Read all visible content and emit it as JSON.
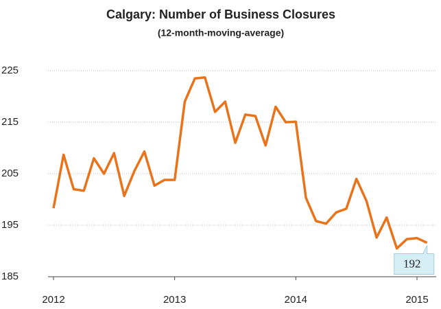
{
  "chart_data": {
    "type": "line",
    "title": "Calgary: Number of Business Closures",
    "subtitle": "(12-month-moving-average)",
    "categories": [
      "2012",
      null,
      null,
      null,
      null,
      null,
      null,
      null,
      null,
      null,
      null,
      null,
      "2013",
      null,
      null,
      null,
      null,
      null,
      null,
      null,
      null,
      null,
      null,
      null,
      "2014",
      null,
      null,
      null,
      null,
      null,
      null,
      null,
      null,
      null,
      null,
      null,
      "2015",
      null
    ],
    "series": [
      {
        "name": "Business closures",
        "color": "#E8731A",
        "values": [
          198.3,
          208.7,
          202,
          201.7,
          208,
          205,
          209,
          200.7,
          205.5,
          209.3,
          202.7,
          203.8,
          203.8,
          219,
          223.5,
          223.7,
          217,
          219,
          211,
          216.5,
          216.2,
          210.5,
          218,
          215,
          215.1,
          200.3,
          195.8,
          195.3,
          197.5,
          198.2,
          204,
          199.7,
          192.6,
          196.5,
          190.5,
          192.3,
          192.5,
          191.6
        ],
        "value_labels": [
          null,
          null,
          null,
          null,
          null,
          null,
          null,
          null,
          null,
          null,
          null,
          null,
          null,
          null,
          null,
          null,
          null,
          null,
          null,
          null,
          null,
          null,
          null,
          null,
          null,
          null,
          null,
          null,
          null,
          null,
          null,
          null,
          null,
          null,
          null,
          null,
          null,
          "192"
        ]
      }
    ],
    "ylim": [
      185,
      225
    ],
    "yticks": [
      185,
      195,
      205,
      215,
      225
    ],
    "grid": true
  }
}
